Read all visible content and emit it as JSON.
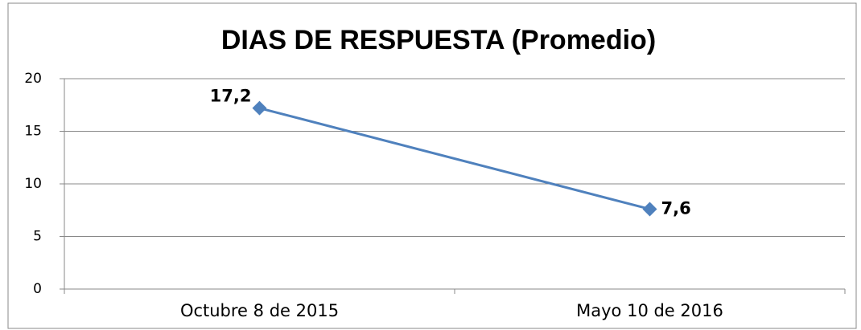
{
  "chart_data": {
    "type": "line",
    "title": "DIAS DE RESPUESTA (Promedio)",
    "categories": [
      "Octubre 8 de 2015",
      "Mayo 10 de 2016"
    ],
    "series": [
      {
        "name": "DIAS DE RESPUESTA (Promedio)",
        "color": "#4f81bd",
        "values": [
          17.2,
          7.6
        ],
        "value_labels": [
          "17,2",
          "7,6"
        ]
      }
    ],
    "ylim": [
      0,
      20
    ],
    "yticks": [
      0,
      5,
      10,
      15,
      20
    ],
    "grid": true
  }
}
